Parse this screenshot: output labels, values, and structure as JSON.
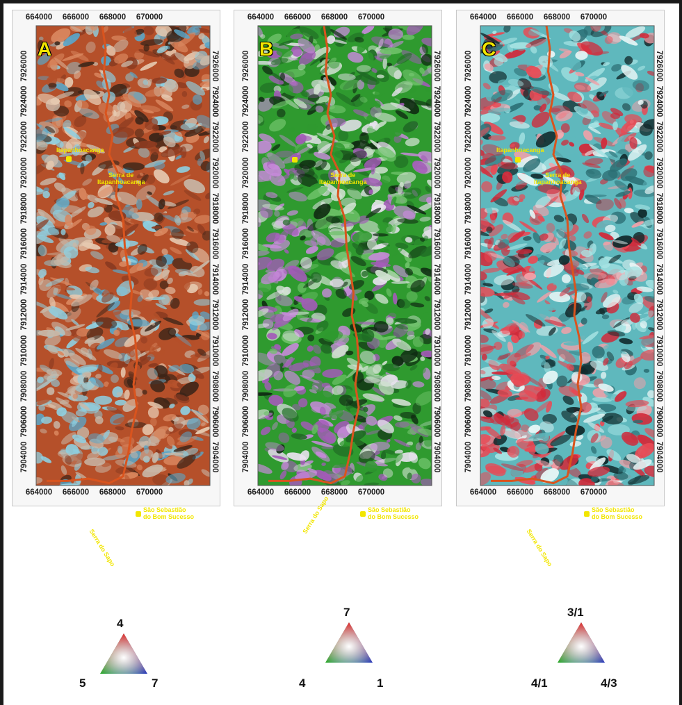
{
  "x_ticks": [
    "664000",
    "666000",
    "668000",
    "670000"
  ],
  "y_ticks": [
    "7926000",
    "7924000",
    "7922000",
    "7920000",
    "7918000",
    "7916000",
    "7914000",
    "7912000",
    "7910000",
    "7908000",
    "7906000",
    "7904000"
  ],
  "places": {
    "town1": "Itapanhoacanga",
    "serra_itapanhoacanga": [
      "Serra de",
      "Itapanhoacanga"
    ],
    "town2": [
      "São Sebastião",
      "do Bom Sucesso"
    ],
    "serra_sapo": "Serra do Sapo"
  },
  "panels": [
    {
      "letter": "A",
      "palette": [
        "#b5502a",
        "#8a3a20",
        "#d9865e",
        "#c8b8a8",
        "#8ecfe0",
        "#5aa6c8",
        "#3a2418",
        "#e6c9b0"
      ],
      "legend": {
        "top": "4",
        "left": "5",
        "right": "7"
      }
    },
    {
      "letter": "B",
      "palette": [
        "#2f9a2f",
        "#1f6b24",
        "#6fc26a",
        "#a35bb8",
        "#c58ad8",
        "#cfe0cf",
        "#0f2a12",
        "#e8e2ee"
      ],
      "legend": {
        "top": "7",
        "left": "4",
        "right": "1"
      }
    },
    {
      "letter": "C",
      "palette": [
        "#5fb8bd",
        "#2b6e73",
        "#a8e4e4",
        "#e84a55",
        "#d12a3a",
        "#f2a0a8",
        "#10292b",
        "#e8f6f6"
      ],
      "legend": {
        "top": "3/1",
        "left": "4/1",
        "right": "4/3"
      }
    }
  ],
  "route_color": "#d9541e",
  "marker_color": "#f2e600"
}
